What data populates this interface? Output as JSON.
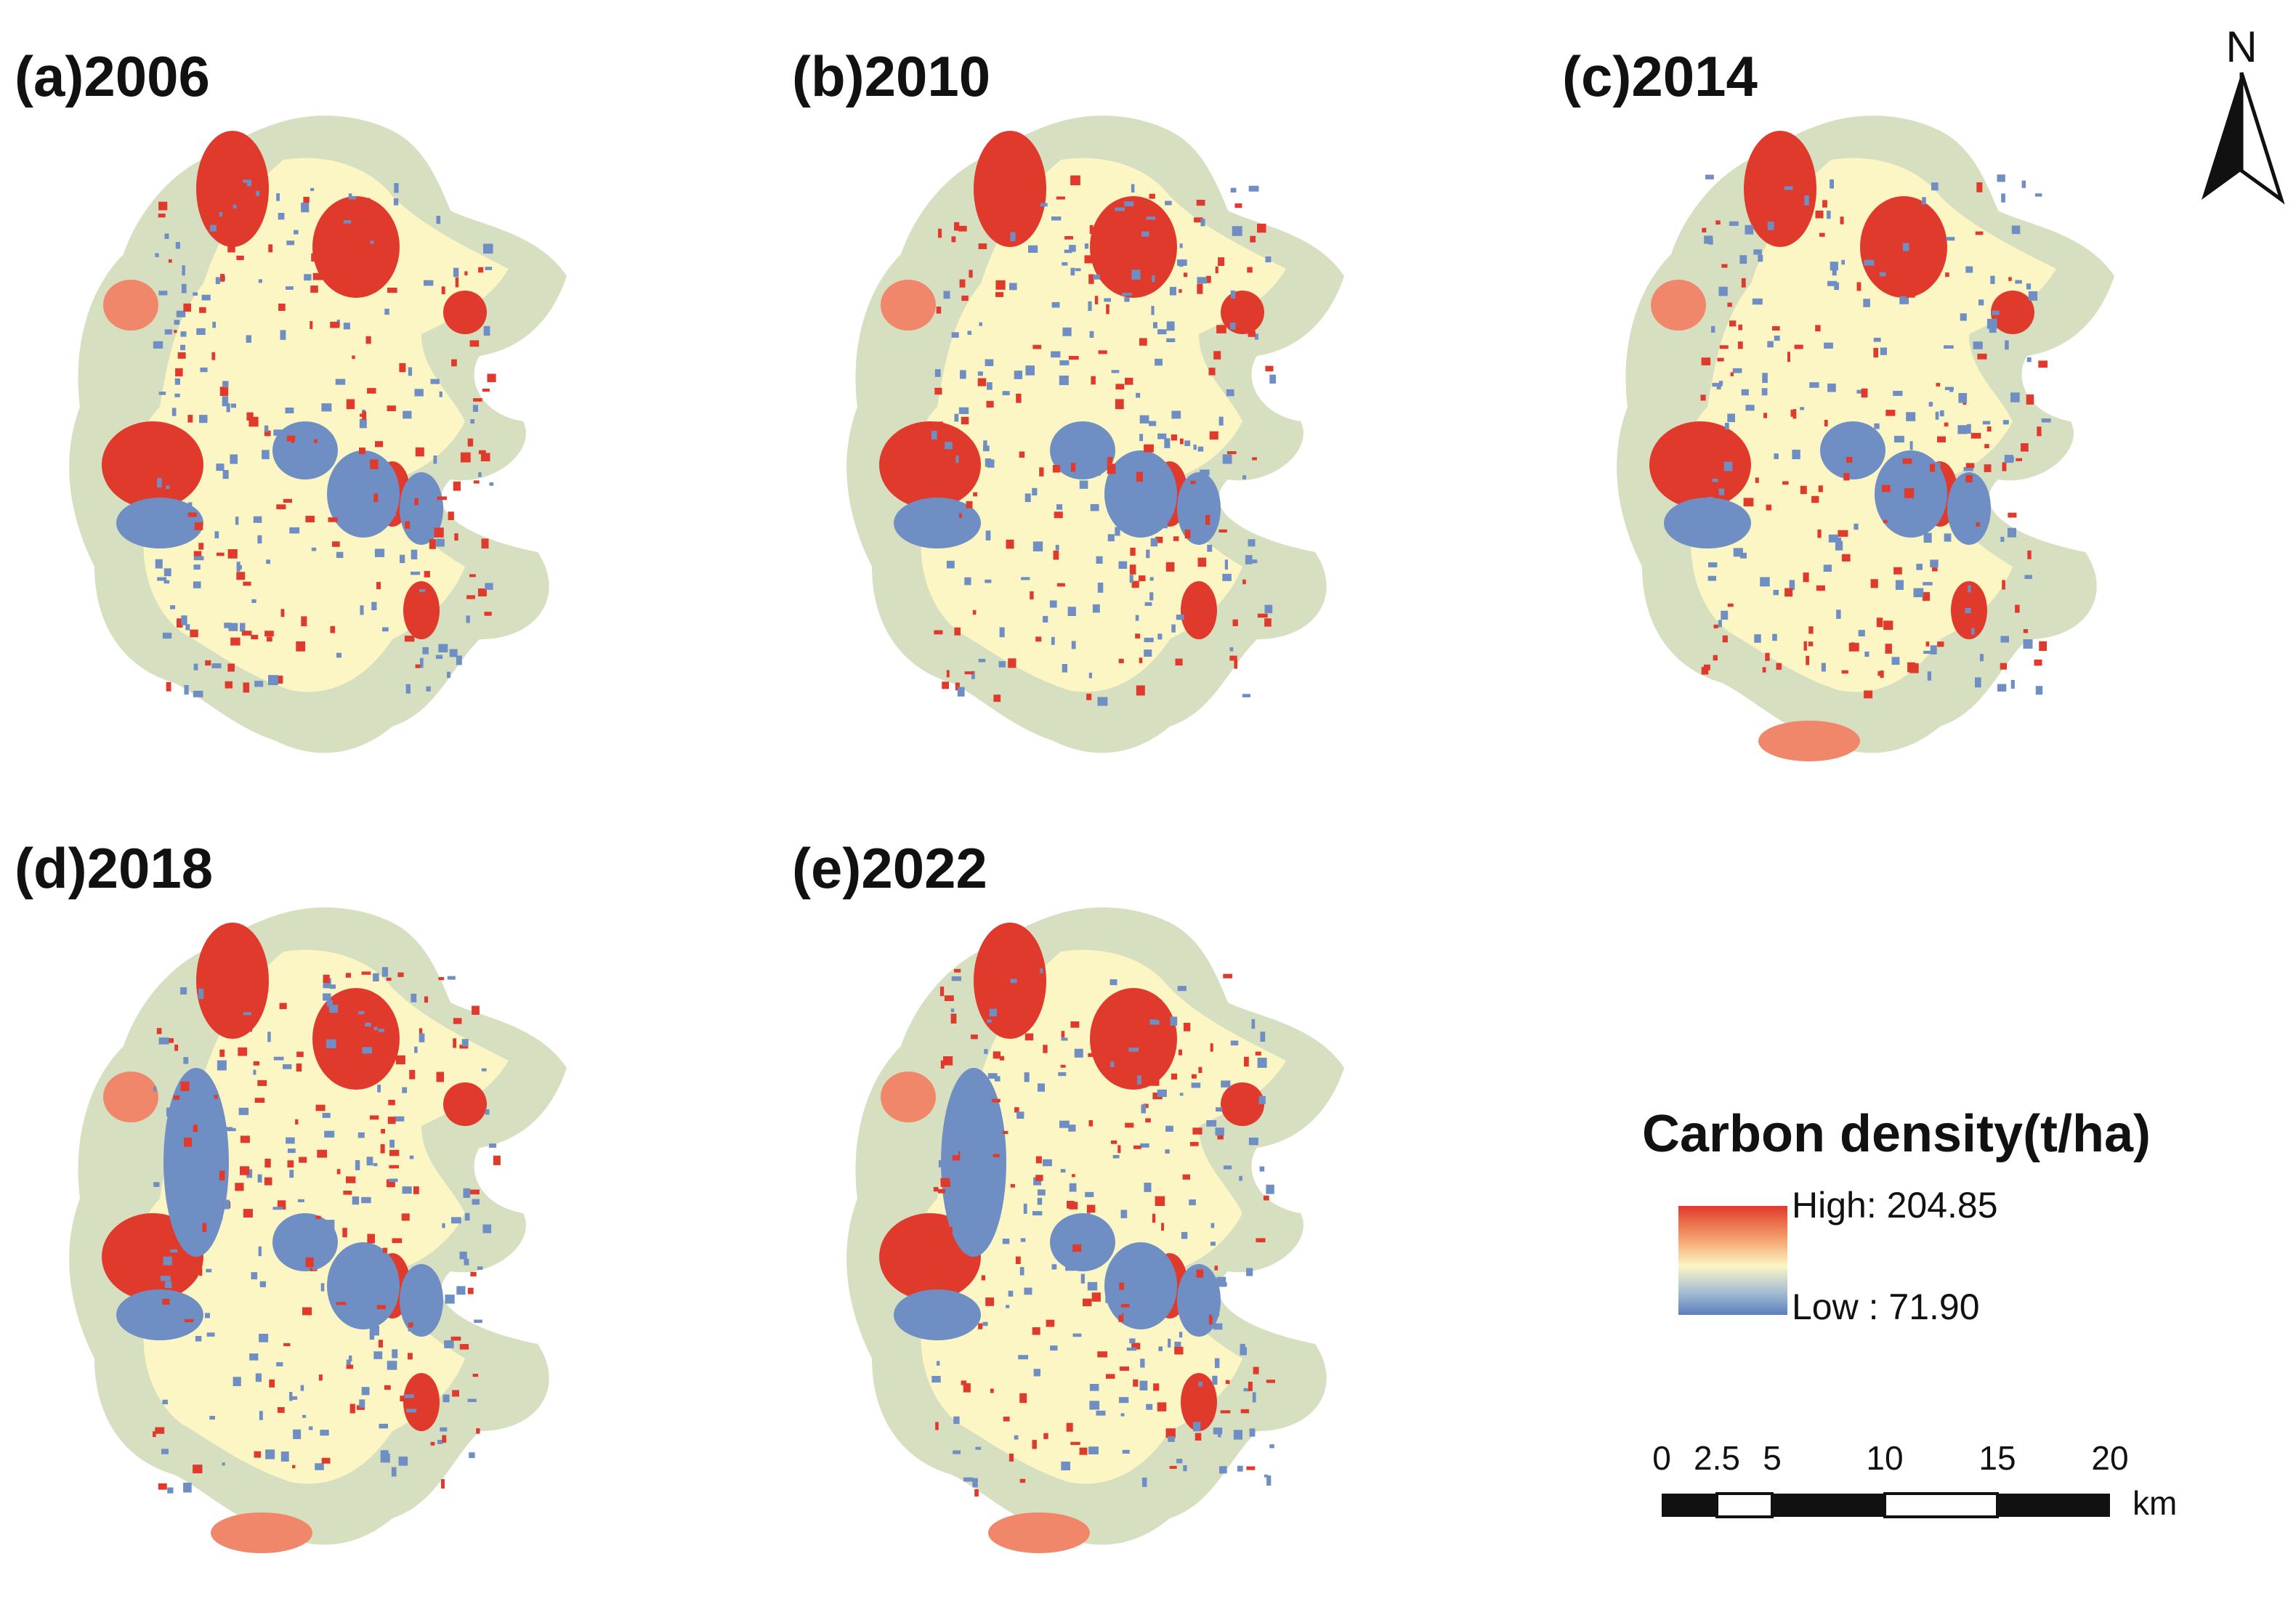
{
  "panels": [
    {
      "label": "(a)2006"
    },
    {
      "label": "(b)2010"
    },
    {
      "label": "(c)2014"
    },
    {
      "label": "(d)2018"
    },
    {
      "label": "(e)2022"
    }
  ],
  "north_arrow": {
    "label": "N"
  },
  "legend": {
    "title": "Carbon density(t/ha)",
    "high_label": "High: 204.85",
    "low_label": "Low : 71.90",
    "high_color": "#e03a2c",
    "mid_color": "#fbf6c4",
    "low_color": "#5b7fbf"
  },
  "scale_bar": {
    "ticks": [
      "0",
      "2.5",
      "5",
      "10",
      "15",
      "20"
    ],
    "unit": "km"
  },
  "colors": {
    "background_region": "#d6dfc0",
    "mid_land": "#fbf6c4",
    "high": "#e03a2c",
    "medium_high": "#f0876a",
    "low": "#6f8fc4"
  }
}
